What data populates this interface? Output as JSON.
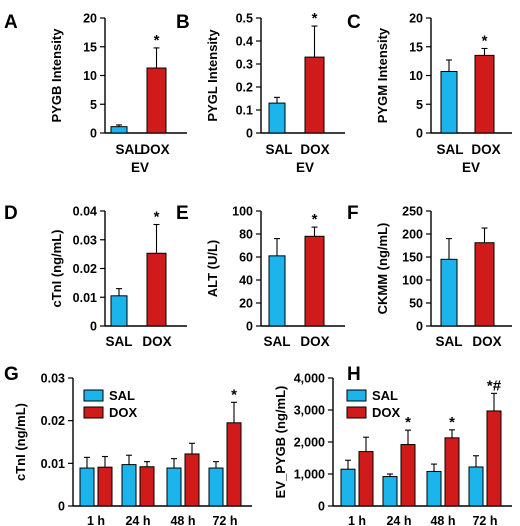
{
  "colors": {
    "sal": "#1bb5ec",
    "dox": "#d11b1b",
    "error_bar": "#000000"
  },
  "chart_data": [
    {
      "panel": "A",
      "type": "bar",
      "ylabel": "PYGB Intensity",
      "xlabel": "EV",
      "categories": [
        "SAL",
        "DOX"
      ],
      "values": [
        1.1,
        11.3
      ],
      "errors": [
        0.3,
        3.5
      ],
      "ylim": [
        0,
        20
      ],
      "yticks": [
        "0",
        "5",
        "10",
        "15",
        "20"
      ],
      "sig": [
        "",
        "*"
      ]
    },
    {
      "panel": "B",
      "type": "bar",
      "ylabel": "PYGL Intensity",
      "xlabel": "EV",
      "categories": [
        "SAL",
        "DOX"
      ],
      "values": [
        0.13,
        0.33
      ],
      "errors": [
        0.025,
        0.135
      ],
      "ylim": [
        0,
        0.5
      ],
      "yticks": [
        "0",
        "0.1",
        "0.2",
        "0.3",
        "0.4",
        "0.5"
      ],
      "sig": [
        "",
        "*"
      ]
    },
    {
      "panel": "C",
      "type": "bar",
      "ylabel": "PYGM Intensity",
      "xlabel": "EV",
      "categories": [
        "SAL",
        "DOX"
      ],
      "values": [
        10.7,
        13.5
      ],
      "errors": [
        2.0,
        1.2
      ],
      "ylim": [
        0,
        20
      ],
      "yticks": [
        "0",
        "5",
        "10",
        "15",
        "20"
      ],
      "sig": [
        "",
        "*"
      ]
    },
    {
      "panel": "D",
      "type": "bar",
      "ylabel": "cTnI (ng/mL)",
      "xlabel": "",
      "categories": [
        "SAL",
        "DOX"
      ],
      "values": [
        0.0105,
        0.0253
      ],
      "errors": [
        0.0025,
        0.01
      ],
      "ylim": [
        0,
        0.04
      ],
      "yticks": [
        "0",
        "0.01",
        "0.02",
        "0.03",
        "0.04"
      ],
      "sig": [
        "",
        "*"
      ]
    },
    {
      "panel": "E",
      "type": "bar",
      "ylabel": "ALT (U/L)",
      "xlabel": "",
      "categories": [
        "SAL",
        "DOX"
      ],
      "values": [
        61,
        78
      ],
      "errors": [
        15,
        8
      ],
      "ylim": [
        0,
        100
      ],
      "yticks": [
        "0",
        "20",
        "40",
        "60",
        "80",
        "100"
      ],
      "sig": [
        "",
        "*"
      ]
    },
    {
      "panel": "F",
      "type": "bar",
      "ylabel": "CKMM (ng/mL)",
      "xlabel": "",
      "categories": [
        "SAL",
        "DOX"
      ],
      "values": [
        145,
        181
      ],
      "errors": [
        45,
        32
      ],
      "ylim": [
        0,
        250
      ],
      "yticks": [
        "0",
        "50",
        "100",
        "150",
        "200",
        "250"
      ],
      "sig": [
        "",
        ""
      ]
    },
    {
      "panel": "G",
      "type": "bar",
      "ylabel": "cTnI (ng/mL)",
      "xlabel": "",
      "categories": [
        "1 h",
        "24 h",
        "48 h",
        "72 h"
      ],
      "series": [
        {
          "name": "SAL",
          "values": [
            0.0089,
            0.0097,
            0.0089,
            0.0089
          ],
          "errors": [
            0.0025,
            0.0022,
            0.0022,
            0.0015
          ]
        },
        {
          "name": "DOX",
          "values": [
            0.0091,
            0.0092,
            0.0122,
            0.0195
          ],
          "errors": [
            0.0025,
            0.0012,
            0.0025,
            0.0048
          ]
        }
      ],
      "ylim": [
        0,
        0.03
      ],
      "yticks": [
        "0",
        "0.01",
        "0.02",
        "0.03"
      ],
      "sig": [
        "",
        "",
        "",
        "*"
      ],
      "legend": "top-left"
    },
    {
      "panel": "H",
      "type": "bar",
      "ylabel": "EV_PYGB (ng/mL)",
      "xlabel": "",
      "categories": [
        "1 h",
        "24 h",
        "48 h",
        "72 h"
      ],
      "series": [
        {
          "name": "SAL",
          "values": [
            1150,
            920,
            1080,
            1220
          ],
          "errors": [
            280,
            80,
            230,
            350
          ]
        },
        {
          "name": "DOX",
          "values": [
            1700,
            1920,
            2130,
            2970
          ],
          "errors": [
            450,
            450,
            250,
            550
          ]
        }
      ],
      "ylim": [
        0,
        4000
      ],
      "yticks": [
        "0",
        "1,000",
        "2,000",
        "3,000",
        "4,000"
      ],
      "sig": [
        "",
        "*",
        "*",
        "*#"
      ],
      "legend": "top-left"
    }
  ]
}
